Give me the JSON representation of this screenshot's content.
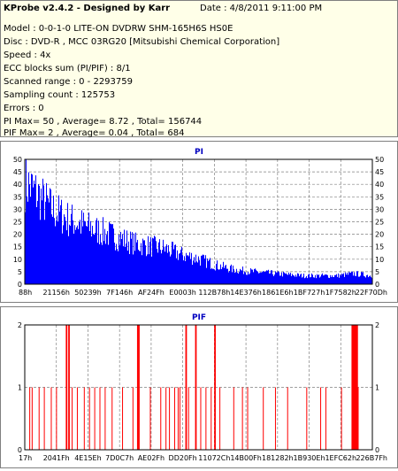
{
  "header": {
    "title": "KProbe v2.4.2 - Designed by Karr",
    "date": "Date : 4/8/2011 9:11:00 PM",
    "lines": [
      "Model : 0-0-1-0 LITE-ON DVDRW SHM-165H6S HS0E",
      "Disc : DVD-R , MCC 03RG20  [Mitsubishi Chemical Corporation]",
      "Speed : 4x",
      "ECC blocks sum (PI/PIF) : 8/1",
      "Scanned range : 0 - 2293759",
      "Sampling count : 125753",
      "Errors : 0",
      "PI Max= 50 , Average= 8.72 , Total= 156744",
      "PIF Max= 2 , Average= 0.04 , Total= 684"
    ]
  },
  "colors": {
    "bar": "#0000ff",
    "pif": "#ff0000",
    "title": "#0000c0",
    "grid": "#808080",
    "plot_bg": "#ffffff"
  },
  "chart_data": [
    {
      "type": "bar",
      "title": "PI",
      "ylim": [
        0,
        50
      ],
      "yticks": [
        0,
        5,
        10,
        15,
        20,
        25,
        30,
        35,
        40,
        45,
        50
      ],
      "xticks": [
        "88h",
        "21156h",
        "50239h",
        "7F146h",
        "AF24Fh",
        "E0003h",
        "112B78h",
        "14E376h",
        "1861E6h",
        "1BF727h",
        "1F7582h",
        "22F70Dh"
      ],
      "grid": true,
      "envelope": [
        [
          0,
          48
        ],
        [
          0.02,
          45
        ],
        [
          0.05,
          40
        ],
        [
          0.08,
          35
        ],
        [
          0.12,
          31
        ],
        [
          0.18,
          27
        ],
        [
          0.25,
          23
        ],
        [
          0.32,
          19
        ],
        [
          0.4,
          17
        ],
        [
          0.45,
          14
        ],
        [
          0.5,
          12
        ],
        [
          0.55,
          9
        ],
        [
          0.6,
          7
        ],
        [
          0.65,
          6
        ],
        [
          0.72,
          5
        ],
        [
          0.8,
          4
        ],
        [
          0.9,
          4
        ],
        [
          0.95,
          5
        ],
        [
          1.0,
          4
        ]
      ]
    },
    {
      "type": "bar",
      "title": "PIF",
      "ylim": [
        0,
        2
      ],
      "yticks": [
        0,
        1,
        2
      ],
      "xticks": [
        "17h",
        "2041Fh",
        "4E15Eh",
        "7D0C7h",
        "AE02Fh",
        "DD20Fh",
        "11072Ch",
        "14B00Fh",
        "181282h",
        "1B930Eh",
        "1EFC62h",
        "226B7Fh"
      ],
      "grid": true,
      "events": [
        [
          0.013,
          1
        ],
        [
          0.02,
          1
        ],
        [
          0.04,
          1
        ],
        [
          0.055,
          1
        ],
        [
          0.075,
          1
        ],
        [
          0.09,
          1
        ],
        [
          0.118,
          2
        ],
        [
          0.125,
          2
        ],
        [
          0.135,
          1
        ],
        [
          0.15,
          1
        ],
        [
          0.17,
          1
        ],
        [
          0.185,
          1
        ],
        [
          0.2,
          1
        ],
        [
          0.215,
          1
        ],
        [
          0.23,
          1
        ],
        [
          0.25,
          1
        ],
        [
          0.28,
          1
        ],
        [
          0.31,
          1
        ],
        [
          0.323,
          2
        ],
        [
          0.326,
          2
        ],
        [
          0.36,
          1
        ],
        [
          0.39,
          1
        ],
        [
          0.405,
          1
        ],
        [
          0.415,
          1
        ],
        [
          0.43,
          1
        ],
        [
          0.44,
          1
        ],
        [
          0.445,
          1
        ],
        [
          0.462,
          2
        ],
        [
          0.47,
          1
        ],
        [
          0.49,
          2
        ],
        [
          0.505,
          1
        ],
        [
          0.52,
          1
        ],
        [
          0.535,
          1
        ],
        [
          0.545,
          2
        ],
        [
          0.56,
          1
        ],
        [
          0.6,
          1
        ],
        [
          0.625,
          1
        ],
        [
          0.64,
          1
        ],
        [
          0.685,
          1
        ],
        [
          0.72,
          1
        ],
        [
          0.755,
          1
        ],
        [
          0.81,
          1
        ],
        [
          0.85,
          1
        ],
        [
          0.865,
          1
        ],
        [
          0.91,
          1
        ],
        [
          0.94,
          2
        ],
        [
          0.943,
          2
        ],
        [
          0.946,
          2
        ],
        [
          0.95,
          2
        ],
        [
          0.954,
          2
        ],
        [
          0.958,
          1
        ]
      ]
    }
  ]
}
